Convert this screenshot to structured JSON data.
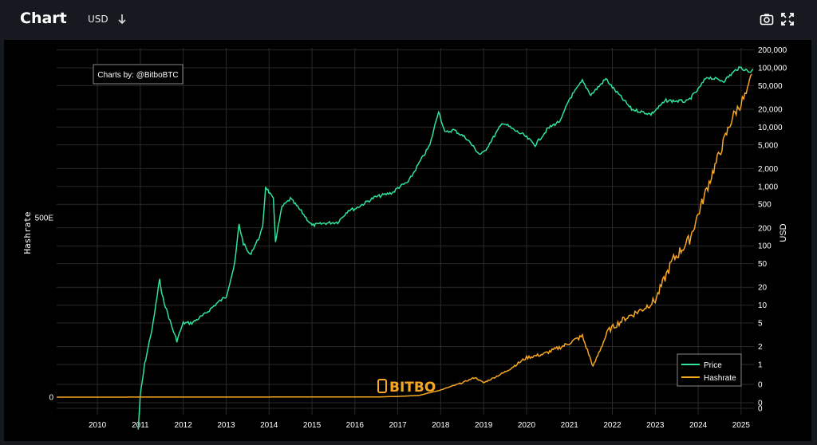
{
  "header": {
    "title": "Chart",
    "currency": "USD",
    "camera_icon": "camera-icon",
    "fullscreen_icon": "fullscreen-icon",
    "sort_icon": "arrow-down-icon"
  },
  "credit": "Charts by: @BitboBTC",
  "watermark": "BITBO",
  "colors": {
    "price": "#2fe39a",
    "hashrate": "#f6a623",
    "background": "#000000",
    "header_bg": "#16191f",
    "grid": "#2a2a2a"
  },
  "chart_data": {
    "type": "line",
    "x_ticks": [
      "2010",
      "2011",
      "2012",
      "2013",
      "2014",
      "2015",
      "2016",
      "2017",
      "2018",
      "2019",
      "2020",
      "2021",
      "2022",
      "2023",
      "2024",
      "2025"
    ],
    "xlim": [
      2009.05,
      2025.3
    ],
    "left_axis": {
      "label": "Hashrate",
      "ticks": [
        "0",
        "500E"
      ],
      "range": [
        "0",
        "1000E"
      ]
    },
    "right_axis": {
      "label": "USD",
      "scale": "log",
      "ticks": [
        "200,000",
        "100,000",
        "50,000",
        "20,000",
        "10,000",
        "5,000",
        "2,000",
        "1,000",
        "500",
        "200",
        "100",
        "50",
        "20",
        "10",
        "5",
        "2",
        "1",
        "0",
        "0",
        "0"
      ]
    },
    "legend": {
      "position": "bottom-right",
      "entries": [
        "Price",
        "Hashrate"
      ]
    },
    "grid": true,
    "series": [
      {
        "name": "Price",
        "axis": "right",
        "points": [
          [
            2010.95,
            0.08
          ],
          [
            2011.0,
            0.3
          ],
          [
            2011.1,
            1.0
          ],
          [
            2011.3,
            5
          ],
          [
            2011.45,
            28
          ],
          [
            2011.5,
            15
          ],
          [
            2011.75,
            4
          ],
          [
            2011.85,
            2.5
          ],
          [
            2012.0,
            5
          ],
          [
            2012.2,
            5
          ],
          [
            2012.5,
            7
          ],
          [
            2012.8,
            11
          ],
          [
            2013.0,
            14
          ],
          [
            2013.2,
            50
          ],
          [
            2013.3,
            230
          ],
          [
            2013.4,
            110
          ],
          [
            2013.55,
            70
          ],
          [
            2013.75,
            130
          ],
          [
            2013.85,
            200
          ],
          [
            2013.92,
            1000
          ],
          [
            2014.0,
            800
          ],
          [
            2014.1,
            600
          ],
          [
            2014.15,
            120
          ],
          [
            2014.3,
            450
          ],
          [
            2014.5,
            620
          ],
          [
            2014.75,
            380
          ],
          [
            2015.0,
            220
          ],
          [
            2015.3,
            240
          ],
          [
            2015.6,
            250
          ],
          [
            2015.85,
            400
          ],
          [
            2016.0,
            420
          ],
          [
            2016.45,
            650
          ],
          [
            2016.9,
            800
          ],
          [
            2017.0,
            950
          ],
          [
            2017.25,
            1200
          ],
          [
            2017.5,
            2500
          ],
          [
            2017.75,
            5000
          ],
          [
            2017.95,
            19000
          ],
          [
            2018.1,
            8000
          ],
          [
            2018.3,
            9000
          ],
          [
            2018.6,
            6500
          ],
          [
            2018.9,
            3500
          ],
          [
            2019.0,
            3700
          ],
          [
            2019.45,
            12000
          ],
          [
            2019.7,
            9000
          ],
          [
            2019.95,
            7200
          ],
          [
            2020.2,
            5000
          ],
          [
            2020.5,
            9500
          ],
          [
            2020.8,
            13000
          ],
          [
            2020.99,
            29000
          ],
          [
            2021.3,
            60000
          ],
          [
            2021.5,
            35000
          ],
          [
            2021.85,
            65000
          ],
          [
            2022.0,
            47000
          ],
          [
            2022.45,
            20000
          ],
          [
            2022.9,
            16500
          ],
          [
            2023.25,
            28000
          ],
          [
            2023.75,
            27000
          ],
          [
            2024.0,
            43000
          ],
          [
            2024.2,
            70000
          ],
          [
            2024.6,
            60000
          ],
          [
            2024.9,
            95000
          ],
          [
            2025.0,
            100000
          ],
          [
            2025.2,
            85000
          ],
          [
            2025.28,
            95000
          ]
        ]
      },
      {
        "name": "Hashrate",
        "axis": "left",
        "points": [
          [
            2009.05,
            0
          ],
          [
            2016.5,
            0.5
          ],
          [
            2017.0,
            2
          ],
          [
            2017.5,
            5
          ],
          [
            2018.0,
            20
          ],
          [
            2018.5,
            40
          ],
          [
            2018.8,
            55
          ],
          [
            2019.0,
            40
          ],
          [
            2019.5,
            70
          ],
          [
            2020.0,
            110
          ],
          [
            2020.4,
            120
          ],
          [
            2020.9,
            145
          ],
          [
            2021.3,
            170
          ],
          [
            2021.45,
            120
          ],
          [
            2021.55,
            85
          ],
          [
            2021.9,
            185
          ],
          [
            2022.3,
            220
          ],
          [
            2022.7,
            245
          ],
          [
            2023.0,
            270
          ],
          [
            2023.4,
            380
          ],
          [
            2023.8,
            440
          ],
          [
            2024.2,
            580
          ],
          [
            2024.5,
            680
          ],
          [
            2024.8,
            780
          ],
          [
            2025.0,
            820
          ],
          [
            2025.15,
            850
          ],
          [
            2025.25,
            900
          ]
        ]
      }
    ]
  }
}
